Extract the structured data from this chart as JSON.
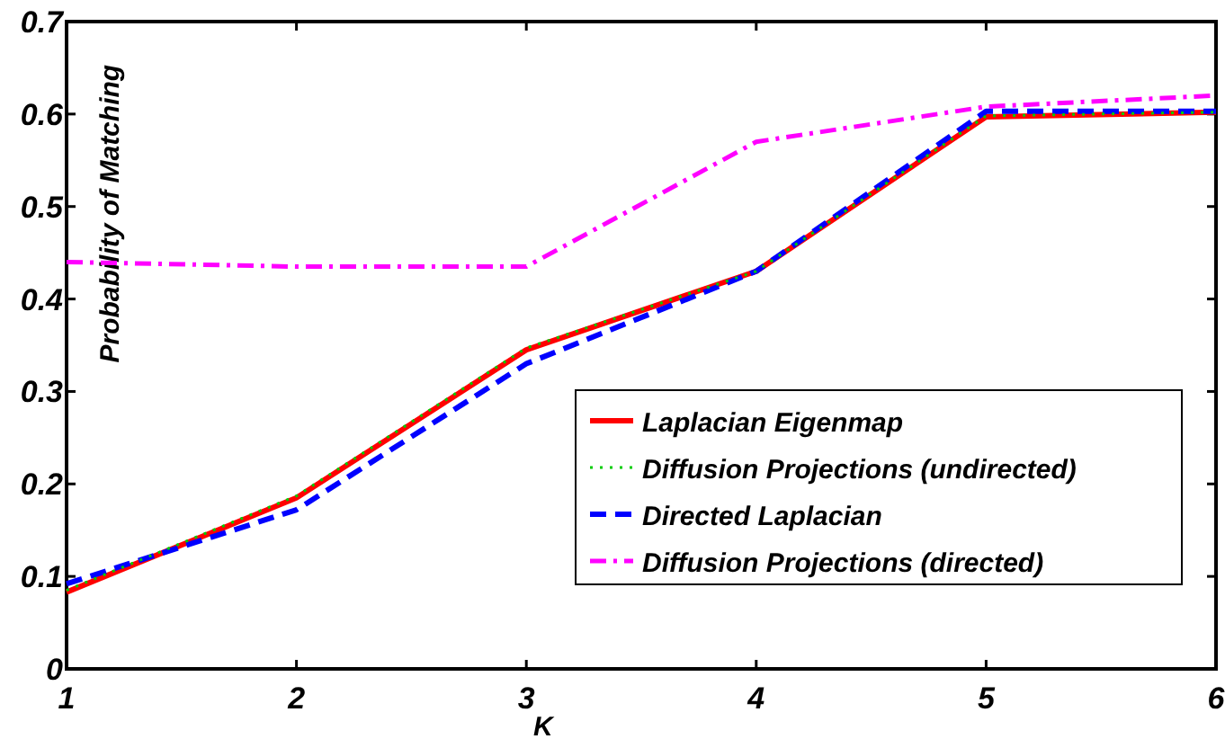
{
  "chart_data": {
    "type": "line",
    "xlabel": "K",
    "ylabel": "Probability of Matching",
    "x": [
      1,
      2,
      3,
      4,
      5,
      6
    ],
    "xlim": [
      1,
      6
    ],
    "xticks": [
      1,
      2,
      3,
      4,
      5,
      6
    ],
    "ylim": [
      0,
      0.7
    ],
    "yticks": [
      0,
      0.1,
      0.2,
      0.3,
      0.4,
      0.5,
      0.6,
      0.7
    ],
    "grid": false,
    "legend": "bottom right",
    "series": [
      {
        "name": "Laplacian Eigenmap",
        "color": "#ff0000",
        "line_style": "solid",
        "values": [
          0.083,
          0.185,
          0.345,
          0.43,
          0.597,
          0.602
        ]
      },
      {
        "name": "Diffusion Projections (undirected)",
        "color": "#00cc00",
        "line_style": "dotted",
        "values": [
          0.085,
          0.187,
          0.347,
          0.43,
          0.598,
          0.602
        ]
      },
      {
        "name": "Directed Laplacian",
        "color": "#0000ff",
        "line_style": "dashed",
        "values": [
          0.092,
          0.172,
          0.33,
          0.43,
          0.603,
          0.603
        ]
      },
      {
        "name": "Diffusion Projections (directed)",
        "color": "#ff00ff",
        "line_style": "dashdot",
        "values": [
          0.44,
          0.435,
          0.435,
          0.57,
          0.608,
          0.62
        ]
      }
    ]
  }
}
